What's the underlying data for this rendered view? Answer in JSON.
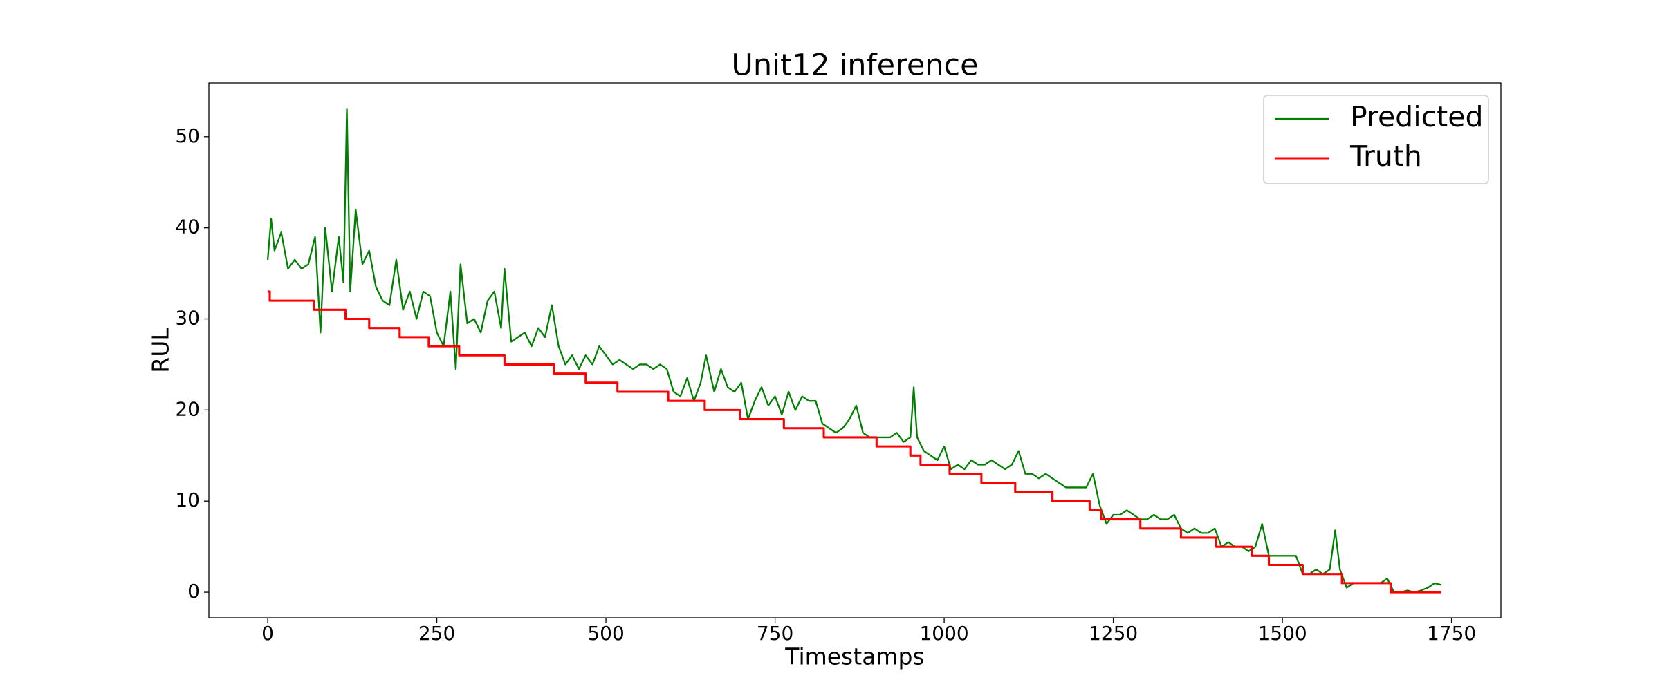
{
  "chart_data": {
    "type": "line",
    "title": "Unit12 inference",
    "x_label": "Timestamps",
    "y_label": "RUL",
    "xlim": [
      -87,
      1823
    ],
    "ylim": [
      -2.8,
      55.9
    ],
    "xticks": [
      0,
      250,
      500,
      750,
      1000,
      1250,
      1500,
      1750
    ],
    "yticks": [
      0,
      10,
      20,
      30,
      40,
      50
    ],
    "legend": "upper right",
    "series": [
      {
        "name": "Predicted",
        "color": "#008000",
        "linewidth": 1.5,
        "x": [
          0,
          5,
          10,
          20,
          30,
          40,
          50,
          60,
          70,
          78,
          85,
          95,
          105,
          112,
          117,
          122,
          130,
          140,
          150,
          160,
          170,
          180,
          190,
          200,
          210,
          220,
          230,
          240,
          250,
          260,
          270,
          278,
          285,
          295,
          305,
          315,
          325,
          335,
          345,
          350,
          360,
          370,
          380,
          390,
          400,
          410,
          420,
          430,
          440,
          450,
          460,
          470,
          480,
          490,
          500,
          510,
          520,
          530,
          540,
          550,
          560,
          570,
          580,
          590,
          600,
          610,
          620,
          630,
          640,
          648,
          660,
          670,
          680,
          690,
          700,
          710,
          720,
          730,
          740,
          750,
          760,
          770,
          780,
          790,
          800,
          810,
          820,
          830,
          840,
          850,
          860,
          870,
          880,
          890,
          900,
          910,
          920,
          930,
          940,
          950,
          955,
          960,
          970,
          980,
          990,
          1000,
          1010,
          1020,
          1030,
          1040,
          1050,
          1060,
          1070,
          1080,
          1090,
          1100,
          1110,
          1120,
          1130,
          1140,
          1150,
          1160,
          1170,
          1180,
          1190,
          1200,
          1210,
          1220,
          1230,
          1240,
          1250,
          1260,
          1270,
          1280,
          1290,
          1300,
          1310,
          1320,
          1330,
          1340,
          1350,
          1360,
          1370,
          1380,
          1390,
          1400,
          1410,
          1420,
          1430,
          1440,
          1450,
          1460,
          1470,
          1480,
          1490,
          1500,
          1510,
          1520,
          1530,
          1540,
          1550,
          1560,
          1570,
          1578,
          1585,
          1595,
          1605,
          1615,
          1625,
          1635,
          1645,
          1655,
          1665,
          1675,
          1685,
          1695,
          1705,
          1715,
          1725,
          1735
        ],
        "values": [
          36.5,
          41,
          37.5,
          39.5,
          35.5,
          36.5,
          35.5,
          36,
          39,
          28.5,
          40,
          33,
          39,
          34,
          53,
          33,
          42,
          36,
          37.5,
          33.5,
          32,
          31.5,
          36.5,
          31,
          33,
          30,
          33,
          32.5,
          28.5,
          27,
          33,
          24.5,
          36,
          29.5,
          30,
          28.5,
          32,
          33,
          29,
          35.5,
          27.5,
          28,
          28.5,
          27,
          29,
          28,
          31.5,
          27,
          25,
          26,
          24.5,
          26,
          25,
          27,
          26,
          25,
          25.5,
          25,
          24.5,
          25,
          25,
          24.5,
          25,
          24.5,
          22,
          21.5,
          23.5,
          21,
          23,
          26,
          22,
          24.5,
          22.5,
          22,
          23,
          19,
          21,
          22.5,
          20.5,
          21.5,
          19.5,
          22,
          20,
          21.5,
          21,
          21,
          18.5,
          18,
          17.5,
          18,
          19,
          20.5,
          17.5,
          17,
          17,
          17,
          17,
          17.5,
          16.5,
          17,
          22.5,
          17,
          15.5,
          15,
          14.5,
          16,
          13.5,
          14,
          13.5,
          14.5,
          14,
          14,
          14.5,
          14,
          13.5,
          14,
          15.5,
          13,
          13,
          12.5,
          13,
          12.5,
          12,
          11.5,
          11.5,
          11.5,
          11.5,
          13,
          9.5,
          7.5,
          8.5,
          8.5,
          9,
          8.5,
          8,
          8,
          8.5,
          8,
          8,
          8.5,
          7,
          6.5,
          7,
          6.5,
          6.5,
          7,
          5,
          5.5,
          5,
          5,
          4.5,
          5,
          7.5,
          4,
          4,
          4,
          4,
          4,
          2,
          2,
          2.5,
          2,
          2.5,
          6.8,
          2.5,
          0.5,
          1,
          1,
          1,
          1,
          1,
          1.5,
          0,
          0,
          0.2,
          0,
          0.2,
          0.5,
          1,
          0.8
        ]
      },
      {
        "name": "Truth",
        "color": "#ff0000",
        "linewidth": 2,
        "x": [
          0,
          3,
          3,
          68,
          68,
          115,
          115,
          150,
          150,
          195,
          195,
          238,
          238,
          283,
          283,
          350,
          350,
          423,
          423,
          470,
          470,
          517,
          517,
          592,
          592,
          646,
          646,
          698,
          698,
          763,
          763,
          822,
          822,
          900,
          900,
          950,
          950,
          965,
          965,
          1008,
          1008,
          1055,
          1055,
          1105,
          1105,
          1160,
          1160,
          1215,
          1215,
          1232,
          1232,
          1290,
          1290,
          1350,
          1350,
          1402,
          1402,
          1455,
          1455,
          1480,
          1480,
          1530,
          1530,
          1588,
          1588,
          1660,
          1660,
          1735
        ],
        "values": [
          33,
          33,
          32,
          32,
          31,
          31,
          30,
          30,
          29,
          29,
          28,
          28,
          27,
          27,
          26,
          26,
          25,
          25,
          24,
          24,
          23,
          23,
          22,
          22,
          21,
          21,
          20,
          20,
          19,
          19,
          18,
          18,
          17,
          17,
          16,
          16,
          15,
          15,
          14,
          14,
          13,
          13,
          12,
          12,
          11,
          11,
          10,
          10,
          9,
          9,
          8,
          8,
          7,
          7,
          6,
          6,
          5,
          5,
          4,
          4,
          3,
          3,
          2,
          2,
          1,
          1,
          0,
          0
        ]
      }
    ]
  }
}
